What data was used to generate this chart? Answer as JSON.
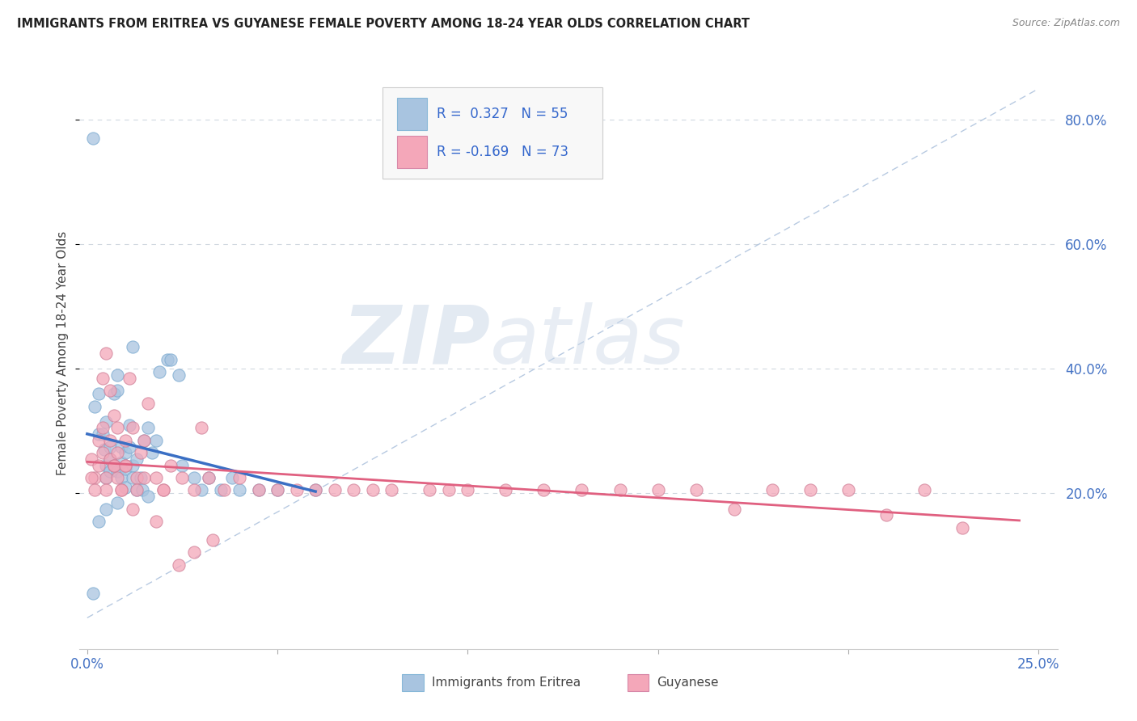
{
  "title": "IMMIGRANTS FROM ERITREA VS GUYANESE FEMALE POVERTY AMONG 18-24 YEAR OLDS CORRELATION CHART",
  "source": "Source: ZipAtlas.com",
  "ylabel": "Female Poverty Among 18-24 Year Olds",
  "R_eritrea": 0.327,
  "N_eritrea": 55,
  "R_guyanese": -0.169,
  "N_guyanese": 73,
  "color_eritrea": "#a8c4e0",
  "color_guyanese": "#f4a7b9",
  "line_color_eritrea": "#3a6fc4",
  "line_color_guyanese": "#e06080",
  "diagonal_line_color": "#b0c4de",
  "watermark_zip": "ZIP",
  "watermark_atlas": "atlas",
  "x_lim": [
    -0.002,
    0.255
  ],
  "y_lim": [
    -0.05,
    0.9
  ],
  "legend_label_eritrea": "Immigrants from Eritrea",
  "legend_label_guyanese": "Guyanese",
  "eritrea_x": [
    0.0015,
    0.002,
    0.003,
    0.003,
    0.004,
    0.0045,
    0.005,
    0.005,
    0.005,
    0.006,
    0.006,
    0.006,
    0.007,
    0.007,
    0.008,
    0.008,
    0.008,
    0.009,
    0.009,
    0.009,
    0.01,
    0.01,
    0.01,
    0.011,
    0.011,
    0.012,
    0.012,
    0.013,
    0.013,
    0.014,
    0.0145,
    0.015,
    0.016,
    0.016,
    0.017,
    0.018,
    0.019,
    0.021,
    0.022,
    0.024,
    0.025,
    0.028,
    0.03,
    0.032,
    0.035,
    0.038,
    0.04,
    0.045,
    0.05,
    0.06,
    0.0015,
    0.003,
    0.005,
    0.008,
    0.012
  ],
  "eritrea_y": [
    0.77,
    0.34,
    0.36,
    0.295,
    0.295,
    0.27,
    0.315,
    0.245,
    0.225,
    0.275,
    0.255,
    0.235,
    0.36,
    0.245,
    0.39,
    0.365,
    0.235,
    0.275,
    0.25,
    0.225,
    0.265,
    0.24,
    0.21,
    0.31,
    0.275,
    0.245,
    0.225,
    0.205,
    0.255,
    0.225,
    0.205,
    0.285,
    0.305,
    0.195,
    0.265,
    0.285,
    0.395,
    0.415,
    0.415,
    0.39,
    0.245,
    0.225,
    0.205,
    0.225,
    0.205,
    0.225,
    0.205,
    0.205,
    0.205,
    0.205,
    0.04,
    0.155,
    0.175,
    0.185,
    0.435
  ],
  "guyanese_x": [
    0.001,
    0.002,
    0.003,
    0.003,
    0.004,
    0.004,
    0.005,
    0.005,
    0.006,
    0.006,
    0.007,
    0.007,
    0.008,
    0.008,
    0.009,
    0.01,
    0.01,
    0.011,
    0.012,
    0.013,
    0.014,
    0.015,
    0.016,
    0.018,
    0.02,
    0.022,
    0.025,
    0.028,
    0.03,
    0.032,
    0.036,
    0.04,
    0.045,
    0.05,
    0.055,
    0.06,
    0.065,
    0.07,
    0.075,
    0.08,
    0.09,
    0.095,
    0.1,
    0.11,
    0.12,
    0.13,
    0.14,
    0.15,
    0.16,
    0.17,
    0.18,
    0.19,
    0.2,
    0.21,
    0.22,
    0.23,
    0.001,
    0.002,
    0.004,
    0.005,
    0.006,
    0.007,
    0.008,
    0.009,
    0.01,
    0.012,
    0.013,
    0.015,
    0.018,
    0.02,
    0.024,
    0.028,
    0.033
  ],
  "guyanese_y": [
    0.255,
    0.225,
    0.285,
    0.245,
    0.305,
    0.265,
    0.225,
    0.205,
    0.255,
    0.285,
    0.245,
    0.325,
    0.265,
    0.225,
    0.205,
    0.285,
    0.245,
    0.385,
    0.305,
    0.225,
    0.265,
    0.285,
    0.345,
    0.225,
    0.205,
    0.245,
    0.225,
    0.205,
    0.305,
    0.225,
    0.205,
    0.225,
    0.205,
    0.205,
    0.205,
    0.205,
    0.205,
    0.205,
    0.205,
    0.205,
    0.205,
    0.205,
    0.205,
    0.205,
    0.205,
    0.205,
    0.205,
    0.205,
    0.205,
    0.175,
    0.205,
    0.205,
    0.205,
    0.165,
    0.205,
    0.145,
    0.225,
    0.205,
    0.385,
    0.425,
    0.365,
    0.245,
    0.305,
    0.205,
    0.245,
    0.175,
    0.205,
    0.225,
    0.155,
    0.205,
    0.085,
    0.105,
    0.125
  ]
}
